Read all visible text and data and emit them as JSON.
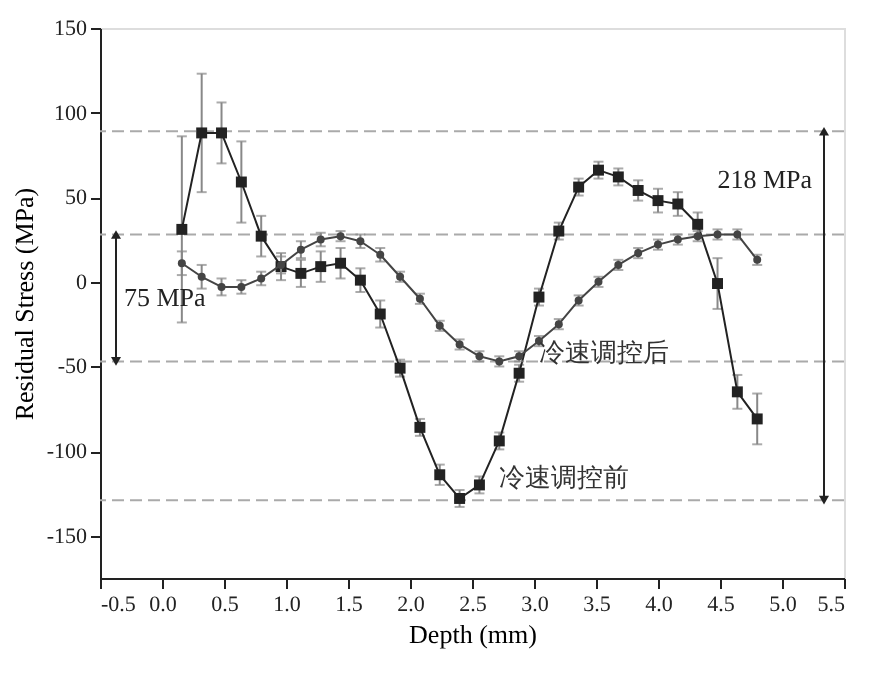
{
  "chart_data": {
    "type": "line",
    "xlabel": "Depth (mm)",
    "ylabel": "Residual Stress (MPa)",
    "x": [
      0.16,
      0.32,
      0.48,
      0.64,
      0.8,
      0.96,
      1.12,
      1.28,
      1.44,
      1.6,
      1.76,
      1.92,
      2.08,
      2.24,
      2.4,
      2.56,
      2.72,
      2.88,
      3.04,
      3.2,
      3.36,
      3.52,
      3.68,
      3.84,
      4.0,
      4.16,
      4.32,
      4.48,
      4.64,
      4.8
    ],
    "series": [
      {
        "name": "冷速调控前",
        "color": "#222222",
        "marker": "square",
        "values": [
          31,
          88,
          88,
          59,
          27,
          9,
          5,
          9,
          11,
          1,
          -19,
          -51,
          -86,
          -114,
          -128,
          -120,
          -94,
          -54,
          -9,
          30,
          56,
          66,
          62,
          54,
          48,
          46,
          34,
          -1,
          -65,
          -81
        ],
        "errors": [
          55,
          35,
          18,
          24,
          12,
          8,
          8,
          9,
          9,
          7,
          8,
          5,
          5,
          6,
          5,
          5,
          5,
          5,
          5,
          5,
          5,
          5,
          5,
          6,
          7,
          7,
          7,
          15,
          10,
          15
        ]
      },
      {
        "name": "冷速调控后",
        "color": "#444444",
        "marker": "circle",
        "values": [
          11,
          3,
          -3,
          -3,
          2,
          10,
          19,
          25,
          27,
          24,
          16,
          3,
          -10,
          -26,
          -37,
          -44,
          -47,
          -44,
          -35,
          -25,
          -11,
          0,
          10,
          17,
          22,
          25,
          27,
          28,
          28,
          13
        ],
        "errors": [
          7,
          7,
          5,
          4,
          4,
          5,
          5,
          4,
          3,
          4,
          4,
          3,
          3,
          3,
          3,
          3,
          3,
          3,
          3,
          3,
          3,
          3,
          3,
          3,
          3,
          3,
          3,
          3,
          3,
          3
        ]
      }
    ],
    "xlim": [
      -0.5,
      5.5
    ],
    "xticks": [
      {
        "value": -0.5,
        "label": "-0.5"
      },
      {
        "value": 0,
        "label": "0.0"
      },
      {
        "value": 0.5,
        "label": "0.5"
      },
      {
        "value": 1,
        "label": "1.0"
      },
      {
        "value": 1.5,
        "label": "1.5"
      },
      {
        "value": 2,
        "label": "2.0"
      },
      {
        "value": 2.5,
        "label": "2.5"
      },
      {
        "value": 3,
        "label": "3.0"
      },
      {
        "value": 3.5,
        "label": "3.5"
      },
      {
        "value": 4,
        "label": "4.0"
      },
      {
        "value": 4.5,
        "label": "4.5"
      },
      {
        "value": 5,
        "label": "5.0"
      },
      {
        "value": 5.5,
        "label": "5.5"
      }
    ],
    "ylim": [
      -175,
      150
    ],
    "yticks": [
      -150,
      -100,
      -50,
      0,
      50,
      100,
      150
    ],
    "ref_lines": [
      {
        "axis": "y",
        "value": 89,
        "color": "#aaaaaa",
        "line_style": "dashed"
      },
      {
        "axis": "y",
        "value": 28,
        "color": "#aaaaaa",
        "line_style": "dashed"
      },
      {
        "axis": "y",
        "value": -47,
        "color": "#aaaaaa",
        "line_style": "dashed"
      },
      {
        "axis": "y",
        "value": -129,
        "color": "#aaaaaa",
        "line_style": "dashed"
      }
    ],
    "annotations": [
      "75 MPa",
      "218 MPa"
    ],
    "grid": false,
    "legend": false,
    "line_style": "solid"
  }
}
